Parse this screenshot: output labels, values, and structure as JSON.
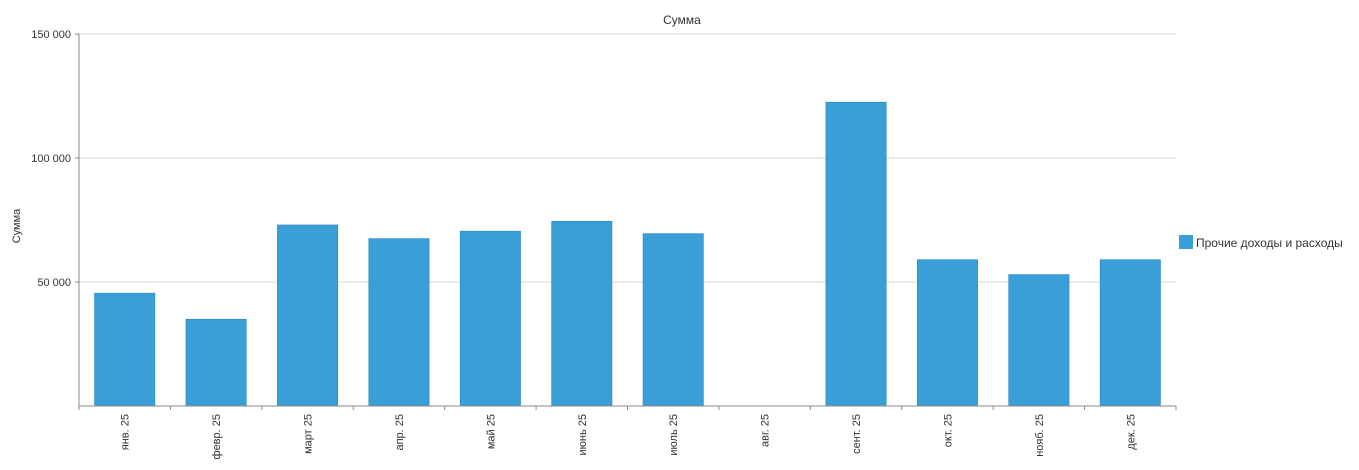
{
  "chart_data": {
    "type": "bar",
    "title": "Сумма",
    "ylabel": "Сумма",
    "xlabel": "",
    "categories": [
      "янв. 25",
      "февр. 25",
      "март 25",
      "апр. 25",
      "май 25",
      "июнь 25",
      "июль 25",
      "авг. 25",
      "сент. 25",
      "окт. 25",
      "нояб. 25",
      "дек. 25"
    ],
    "series": [
      {
        "name": "Прочие доходы и расходы",
        "values": [
          45500,
          35000,
          73000,
          67500,
          70500,
          74500,
          69500,
          0,
          122500,
          59000,
          53000,
          59000
        ]
      }
    ],
    "ylim": [
      0,
      150000
    ],
    "yticks": [
      50000,
      100000,
      150000
    ],
    "ytick_labels": [
      "50 000",
      "100 000",
      "150 000"
    ],
    "grid": true,
    "legend_position": "right",
    "colors": {
      "bar": "#3a9fd6",
      "bar_edge": "#2b86bb"
    }
  }
}
